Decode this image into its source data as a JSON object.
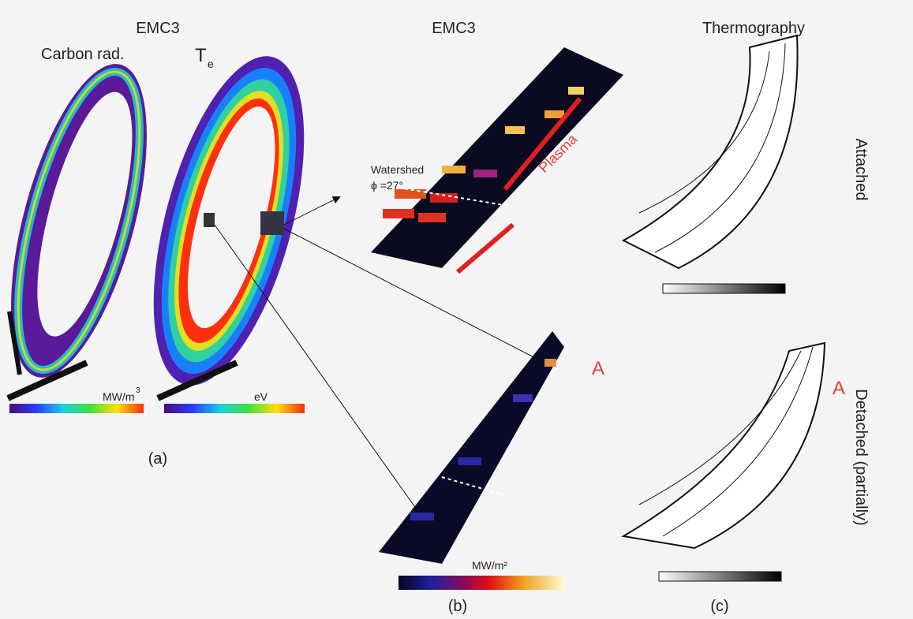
{
  "panel_a": {
    "title": "EMC3",
    "left_label": "Carbon rad.",
    "right_label_main": "T",
    "right_label_sub": "e",
    "left_unit_main": "MW/m",
    "left_unit_sup": "3",
    "right_unit": "eV",
    "caption": "(a)"
  },
  "panel_b": {
    "title": "EMC3",
    "watershed": "Watershed",
    "phi": "ϕ =27°",
    "plasma": "Plasma",
    "marker": "A",
    "unit": "MW/m²",
    "caption": "(b)"
  },
  "panel_c": {
    "title": "Thermography",
    "attached": "Attached",
    "detached": "Detached (partially)",
    "marker": "A",
    "caption": "(c)"
  }
}
